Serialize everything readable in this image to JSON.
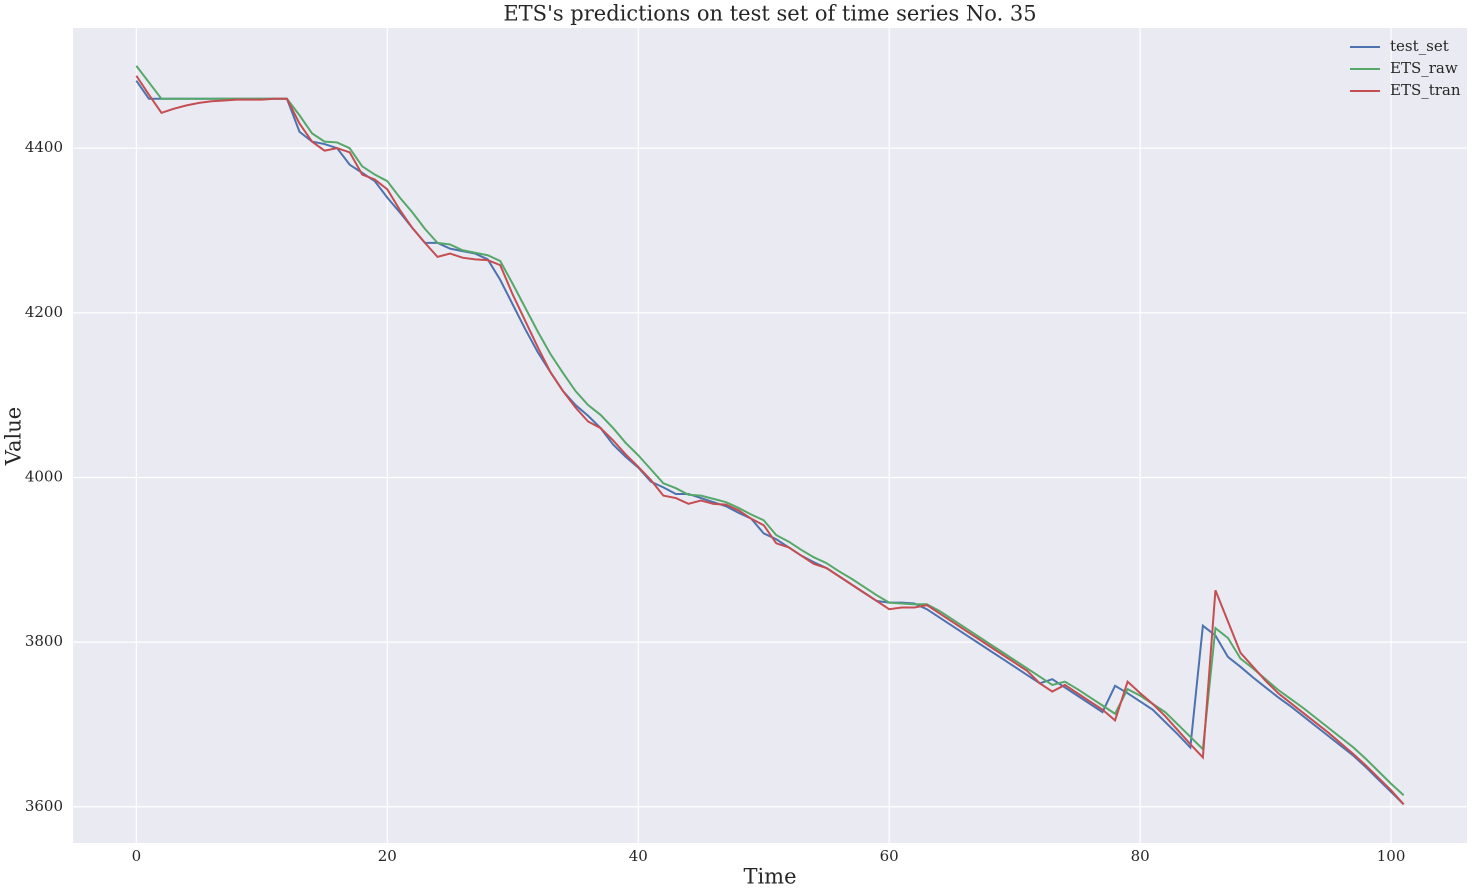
{
  "chart_data": {
    "type": "line",
    "title": "ETS's predictions on test set of time series No. 35",
    "xlabel": "Time",
    "ylabel": "Value",
    "x": [
      0,
      1,
      2,
      3,
      4,
      5,
      6,
      7,
      8,
      9,
      10,
      11,
      12,
      13,
      14,
      15,
      16,
      17,
      18,
      19,
      20,
      21,
      22,
      23,
      24,
      25,
      26,
      27,
      28,
      29,
      30,
      31,
      32,
      33,
      34,
      35,
      36,
      37,
      38,
      39,
      40,
      41,
      42,
      43,
      44,
      45,
      46,
      47,
      48,
      49,
      50,
      51,
      52,
      53,
      54,
      55,
      56,
      57,
      58,
      59,
      60,
      61,
      62,
      63,
      64,
      65,
      66,
      67,
      68,
      69,
      70,
      71,
      72,
      73,
      74,
      75,
      76,
      77,
      78,
      79,
      80,
      81,
      82,
      83,
      84,
      85,
      86,
      87,
      88,
      89,
      90,
      91,
      92,
      93,
      94,
      95,
      96,
      97,
      98,
      99,
      100,
      101
    ],
    "series": [
      {
        "name": "test_set",
        "color": "#4c72b0",
        "values": [
          4482,
          4460,
          4460,
          4460,
          4460,
          4460,
          4460,
          4460,
          4460,
          4460,
          4460,
          4460,
          4460,
          4420,
          4408,
          4405,
          4400,
          4380,
          4370,
          4360,
          4340,
          4322,
          4303,
          4285,
          4285,
          4278,
          4275,
          4272,
          4265,
          4240,
          4210,
          4180,
          4152,
          4128,
          4105,
          4088,
          4075,
          4060,
          4040,
          4025,
          4012,
          3995,
          3988,
          3980,
          3980,
          3975,
          3970,
          3965,
          3957,
          3950,
          3932,
          3925,
          3915,
          3905,
          3897,
          3890,
          3880,
          3870,
          3860,
          3850,
          3848,
          3848,
          3847,
          3840,
          3830,
          3820,
          3810,
          3800,
          3790,
          3780,
          3770,
          3760,
          3750,
          3755,
          3745,
          3735,
          3725,
          3715,
          3747,
          3738,
          3728,
          3718,
          3703,
          3688,
          3672,
          3820,
          3808,
          3782,
          3770,
          3757,
          3745,
          3733,
          3722,
          3710,
          3698,
          3686,
          3674,
          3662,
          3648,
          3633,
          3618,
          3603
        ]
      },
      {
        "name": "ETS_raw",
        "color": "#55a868",
        "values": [
          4500,
          4480,
          4460,
          4460,
          4460,
          4460,
          4460,
          4460,
          4460,
          4460,
          4460,
          4460,
          4460,
          4440,
          4418,
          4408,
          4407,
          4400,
          4378,
          4368,
          4360,
          4340,
          4322,
          4302,
          4285,
          4283,
          4276,
          4273,
          4270,
          4263,
          4235,
          4206,
          4177,
          4150,
          4127,
          4105,
          4088,
          4076,
          4060,
          4042,
          4027,
          4010,
          3993,
          3987,
          3979,
          3978,
          3974,
          3970,
          3963,
          3955,
          3948,
          3930,
          3922,
          3912,
          3903,
          3896,
          3886,
          3877,
          3867,
          3857,
          3848,
          3847,
          3846,
          3846,
          3838,
          3828,
          3818,
          3808,
          3798,
          3788,
          3778,
          3768,
          3758,
          3748,
          3752,
          3743,
          3733,
          3723,
          3713,
          3743,
          3735,
          3725,
          3715,
          3700,
          3685,
          3670,
          3817,
          3805,
          3780,
          3768,
          3755,
          3742,
          3731,
          3720,
          3708,
          3696,
          3684,
          3672,
          3658,
          3643,
          3628,
          3614
        ]
      },
      {
        "name": "ETS_tran",
        "color": "#c44e52",
        "values": [
          4488,
          4465,
          4443,
          4448,
          4452,
          4455,
          4457,
          4458,
          4459,
          4459,
          4459,
          4460,
          4460,
          4430,
          4408,
          4397,
          4400,
          4395,
          4368,
          4362,
          4350,
          4325,
          4303,
          4285,
          4268,
          4272,
          4267,
          4265,
          4264,
          4258,
          4222,
          4190,
          4158,
          4128,
          4105,
          4085,
          4068,
          4060,
          4045,
          4028,
          4013,
          3997,
          3978,
          3975,
          3968,
          3972,
          3968,
          3967,
          3960,
          3950,
          3942,
          3920,
          3915,
          3905,
          3895,
          3890,
          3880,
          3870,
          3860,
          3850,
          3840,
          3842,
          3842,
          3845,
          3835,
          3825,
          3815,
          3805,
          3795,
          3785,
          3775,
          3765,
          3750,
          3740,
          3748,
          3738,
          3728,
          3718,
          3705,
          3752,
          3738,
          3725,
          3710,
          3693,
          3676,
          3660,
          3863,
          3825,
          3787,
          3770,
          3753,
          3738,
          3726,
          3714,
          3702,
          3690,
          3677,
          3664,
          3650,
          3635,
          3620,
          3603
        ]
      }
    ],
    "xlim": [
      -5.05,
      106.05
    ],
    "xticks": [
      0,
      20,
      40,
      60,
      80,
      100
    ],
    "ylim": [
      3556,
      4546
    ],
    "yticks": [
      3600,
      3800,
      4000,
      4200,
      4400
    ],
    "grid": true,
    "legend": "upper right"
  }
}
